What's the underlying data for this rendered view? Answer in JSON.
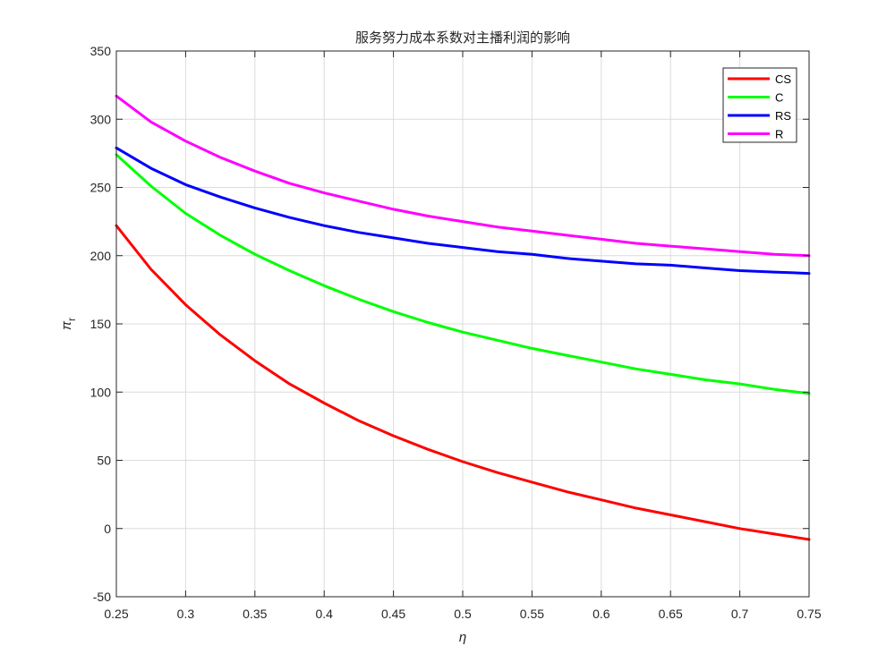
{
  "chart_data": {
    "type": "line",
    "title": "服务努力成本系数对主播利润的影响",
    "xlabel": "η",
    "ylabel_main": "π",
    "ylabel_sub": "r",
    "xlim": [
      0.25,
      0.75
    ],
    "ylim": [
      -50,
      350
    ],
    "xticks": [
      0.25,
      0.3,
      0.35,
      0.4,
      0.45,
      0.5,
      0.55,
      0.6,
      0.65,
      0.7,
      0.75
    ],
    "xtick_labels": [
      "0.25",
      "0.3",
      "0.35",
      "0.4",
      "0.45",
      "0.5",
      "0.55",
      "0.6",
      "0.65",
      "0.7",
      "0.75"
    ],
    "yticks": [
      -50,
      0,
      50,
      100,
      150,
      200,
      250,
      300,
      350
    ],
    "ytick_labels": [
      "-50",
      "0",
      "50",
      "100",
      "150",
      "200",
      "250",
      "300",
      "350"
    ],
    "grid": true,
    "legend_position": "top-right",
    "x": [
      0.25,
      0.275,
      0.3,
      0.325,
      0.35,
      0.375,
      0.4,
      0.425,
      0.45,
      0.475,
      0.5,
      0.525,
      0.55,
      0.575,
      0.6,
      0.625,
      0.65,
      0.675,
      0.7,
      0.725,
      0.75
    ],
    "series": [
      {
        "name": "CS",
        "color": "#ff0000",
        "values": [
          222,
          190,
          164,
          142,
          123,
          106,
          92,
          79,
          68,
          58,
          49,
          41,
          34,
          27,
          21,
          15,
          10,
          5,
          0,
          -4,
          -8
        ]
      },
      {
        "name": "C",
        "color": "#00ff00",
        "values": [
          274,
          251,
          231,
          215,
          201,
          189,
          178,
          168,
          159,
          151,
          144,
          138,
          132,
          127,
          122,
          117,
          113,
          109,
          106,
          102,
          99
        ]
      },
      {
        "name": "RS",
        "color": "#0000ff",
        "values": [
          279,
          264,
          252,
          243,
          235,
          228,
          222,
          217,
          213,
          209,
          206,
          203,
          201,
          198,
          196,
          194,
          193,
          191,
          189,
          188,
          187
        ]
      },
      {
        "name": "R",
        "color": "#ff00ff",
        "values": [
          317,
          298,
          284,
          272,
          262,
          253,
          246,
          240,
          234,
          229,
          225,
          221,
          218,
          215,
          212,
          209,
          207,
          205,
          203,
          201,
          200
        ]
      }
    ]
  }
}
